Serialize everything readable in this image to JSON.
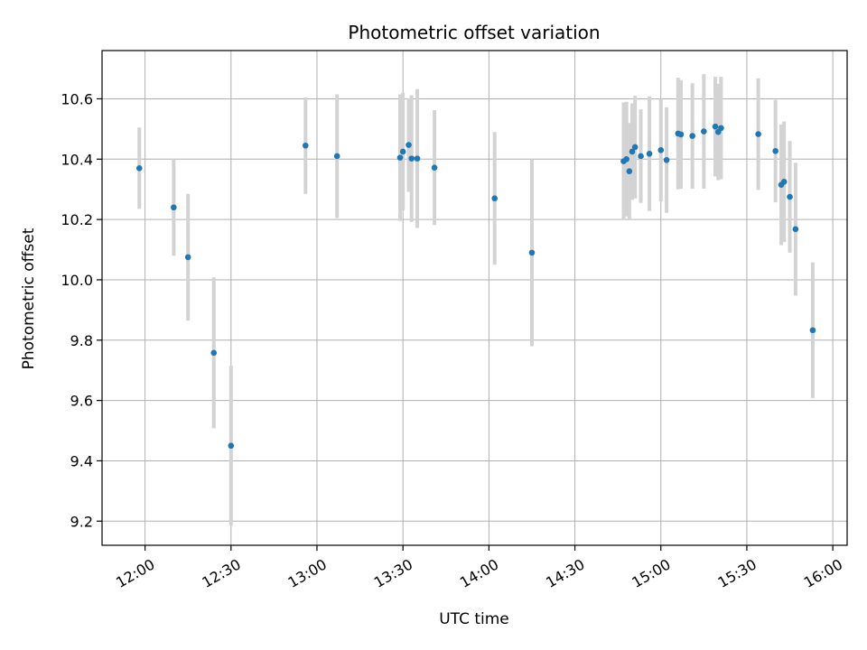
{
  "chart_data": {
    "type": "scatter",
    "title": "Photometric offset variation",
    "xlabel": "UTC time",
    "ylabel": "Photometric offset",
    "xlim": [
      "11:45",
      "16:05"
    ],
    "ylim": [
      9.12,
      10.76
    ],
    "xticks": [
      "12:00",
      "12:30",
      "13:00",
      "13:30",
      "14:00",
      "14:30",
      "15:00",
      "15:30",
      "16:00"
    ],
    "yticks": [
      9.2,
      9.4,
      9.6,
      9.8,
      10.0,
      10.2,
      10.4,
      10.6
    ],
    "grid": true,
    "colors": {
      "point": "#1f77b4",
      "errorbar": "#d3d3d3",
      "grid": "#b0b0b0"
    },
    "points": [
      {
        "x": "11:58",
        "y": 10.37,
        "err": 0.135
      },
      {
        "x": "12:10",
        "y": 10.24,
        "err": 0.16
      },
      {
        "x": "12:15",
        "y": 10.075,
        "err": 0.21
      },
      {
        "x": "12:24",
        "y": 9.758,
        "err": 0.25
      },
      {
        "x": "12:30",
        "y": 9.45,
        "err": 0.265
      },
      {
        "x": "12:56",
        "y": 10.445,
        "err": 0.16
      },
      {
        "x": "13:07",
        "y": 10.41,
        "err": 0.205
      },
      {
        "x": "13:29",
        "y": 10.405,
        "err": 0.21
      },
      {
        "x": "13:30",
        "y": 10.425,
        "err": 0.195
      },
      {
        "x": "13:32",
        "y": 10.447,
        "err": 0.155
      },
      {
        "x": "13:33",
        "y": 10.402,
        "err": 0.21
      },
      {
        "x": "13:35",
        "y": 10.402,
        "err": 0.23
      },
      {
        "x": "13:41",
        "y": 10.372,
        "err": 0.19
      },
      {
        "x": "14:02",
        "y": 10.27,
        "err": 0.22
      },
      {
        "x": "14:15",
        "y": 10.09,
        "err": 0.31
      },
      {
        "x": "14:47",
        "y": 10.393,
        "err": 0.195
      },
      {
        "x": "14:48",
        "y": 10.4,
        "err": 0.19
      },
      {
        "x": "14:49",
        "y": 10.36,
        "err": 0.16
      },
      {
        "x": "14:50",
        "y": 10.425,
        "err": 0.16
      },
      {
        "x": "14:51",
        "y": 10.44,
        "err": 0.17
      },
      {
        "x": "14:53",
        "y": 10.41,
        "err": 0.155
      },
      {
        "x": "14:56",
        "y": 10.418,
        "err": 0.19
      },
      {
        "x": "15:00",
        "y": 10.43,
        "err": 0.17
      },
      {
        "x": "15:02",
        "y": 10.397,
        "err": 0.175
      },
      {
        "x": "15:06",
        "y": 10.485,
        "err": 0.185
      },
      {
        "x": "15:07",
        "y": 10.482,
        "err": 0.18
      },
      {
        "x": "15:11",
        "y": 10.477,
        "err": 0.175
      },
      {
        "x": "15:15",
        "y": 10.492,
        "err": 0.19
      },
      {
        "x": "15:19",
        "y": 10.508,
        "err": 0.165
      },
      {
        "x": "15:20",
        "y": 10.49,
        "err": 0.16
      },
      {
        "x": "15:21",
        "y": 10.503,
        "err": 0.17
      },
      {
        "x": "15:34",
        "y": 10.483,
        "err": 0.185
      },
      {
        "x": "15:40",
        "y": 10.427,
        "err": 0.17
      },
      {
        "x": "15:42",
        "y": 10.315,
        "err": 0.2
      },
      {
        "x": "15:43",
        "y": 10.325,
        "err": 0.2
      },
      {
        "x": "15:45",
        "y": 10.275,
        "err": 0.185
      },
      {
        "x": "15:47",
        "y": 10.168,
        "err": 0.22
      },
      {
        "x": "15:53",
        "y": 9.833,
        "err": 0.225
      }
    ]
  }
}
